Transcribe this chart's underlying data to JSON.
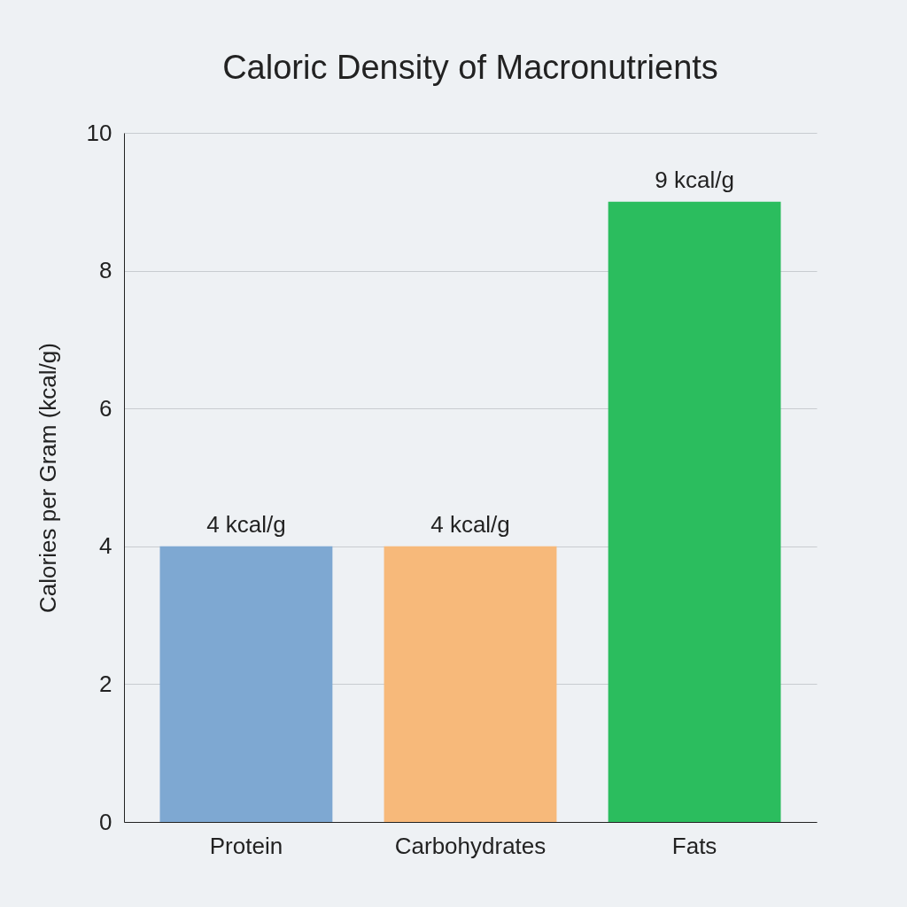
{
  "chart_data": {
    "type": "bar",
    "title": "Caloric Density of Macronutrients",
    "ylabel": "Calories per Gram (kcal/g)",
    "categories": [
      "Protein",
      "Carbohydrates",
      "Fats"
    ],
    "values": [
      4,
      4,
      9
    ],
    "colors": [
      "#7ea8d2",
      "#f7b97a",
      "#2bbd5e"
    ],
    "value_labels": [
      "4 kcal/g",
      "4 kcal/g",
      "9 kcal/g"
    ],
    "ylim": [
      0,
      10
    ],
    "yticks": [
      0,
      2,
      4,
      6,
      8,
      10
    ],
    "grid": "y"
  }
}
